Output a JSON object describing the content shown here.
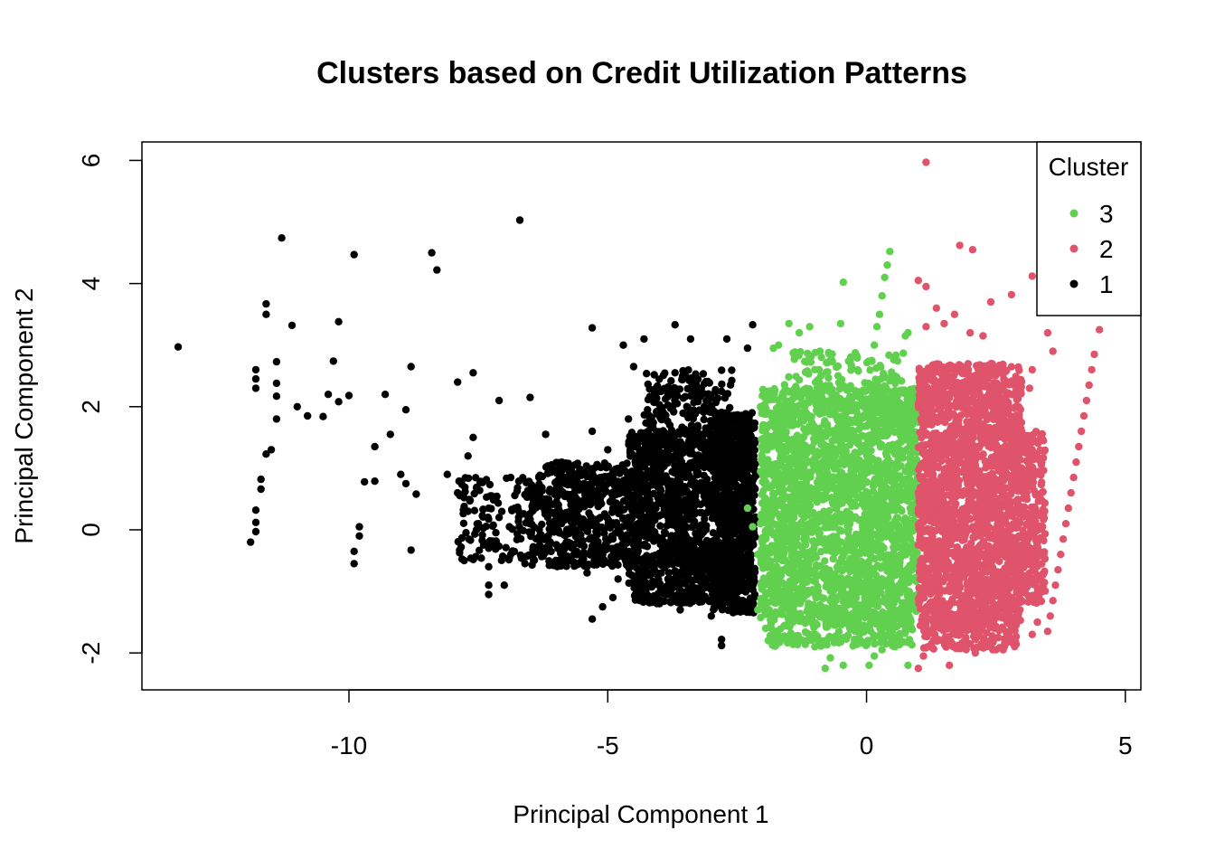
{
  "chart_data": {
    "type": "scatter",
    "title": "Clusters based on Credit Utilization Patterns",
    "xlabel": "Principal Component 1",
    "ylabel": "Principal Component 2",
    "xlim": [
      -14,
      5.3
    ],
    "ylim": [
      -2.6,
      6.3
    ],
    "x_ticks": [
      "-10",
      "-5",
      "0",
      "5"
    ],
    "x_tick_values": [
      -10,
      -5,
      0,
      5
    ],
    "y_ticks": [
      "-2",
      "0",
      "2",
      "4",
      "6"
    ],
    "y_tick_values": [
      -2,
      0,
      2,
      4,
      6
    ],
    "grid": false,
    "legend": {
      "title": "Cluster",
      "placement": "top-right",
      "entries": [
        {
          "label": "3",
          "color": "#61D04F"
        },
        {
          "label": "2",
          "color": "#DF536B"
        },
        {
          "label": "1",
          "color": "#000000"
        }
      ]
    },
    "series": [
      {
        "name": "1",
        "color": "#000000",
        "points": [
          [
            -13.3,
            2.97
          ],
          [
            -11.3,
            4.74
          ],
          [
            -9.9,
            4.47
          ],
          [
            -8.4,
            4.5
          ],
          [
            -8.3,
            4.22
          ],
          [
            -6.7,
            5.03
          ],
          [
            -11.6,
            3.67
          ],
          [
            -11.6,
            3.5
          ],
          [
            -11.1,
            3.32
          ],
          [
            -10.2,
            3.38
          ],
          [
            -10.3,
            2.74
          ],
          [
            -11.8,
            2.6
          ],
          [
            -11.8,
            2.45
          ],
          [
            -11.8,
            2.3
          ],
          [
            -11.4,
            2.73
          ],
          [
            -11.4,
            2.38
          ],
          [
            -11.4,
            2.17
          ],
          [
            -11.0,
            2.0
          ],
          [
            -10.8,
            1.85
          ],
          [
            -10.5,
            1.84
          ],
          [
            -10.4,
            2.2
          ],
          [
            -10.2,
            2.08
          ],
          [
            -10.0,
            2.18
          ],
          [
            -9.3,
            2.2
          ],
          [
            -8.8,
            2.65
          ],
          [
            -8.9,
            1.95
          ],
          [
            -11.4,
            1.8
          ],
          [
            -11.5,
            1.3
          ],
          [
            -11.6,
            1.23
          ],
          [
            -11.7,
            0.82
          ],
          [
            -11.7,
            0.66
          ],
          [
            -11.8,
            0.32
          ],
          [
            -11.8,
            0.12
          ],
          [
            -11.8,
            -0.03
          ],
          [
            -11.9,
            -0.2
          ],
          [
            -9.2,
            1.55
          ],
          [
            -9.5,
            1.35
          ],
          [
            -9.7,
            0.78
          ],
          [
            -9.5,
            0.79
          ],
          [
            -9.0,
            0.9
          ],
          [
            -8.9,
            0.75
          ],
          [
            -8.7,
            0.58
          ],
          [
            -9.8,
            0.05
          ],
          [
            -9.8,
            -0.1
          ],
          [
            -9.9,
            -0.35
          ],
          [
            -9.9,
            -0.55
          ],
          [
            -8.8,
            -0.33
          ],
          [
            -8.1,
            0.9
          ],
          [
            -7.9,
            0.6
          ],
          [
            -7.7,
            0.3
          ],
          [
            -7.5,
            0.1
          ],
          [
            -7.3,
            0.35
          ],
          [
            -7.1,
            0.2
          ],
          [
            -6.9,
            0.05
          ],
          [
            -7.6,
            1.5
          ],
          [
            -7.7,
            1.2
          ],
          [
            -7.9,
            2.4
          ],
          [
            -7.6,
            2.55
          ],
          [
            -7.1,
            2.1
          ],
          [
            -6.5,
            2.15
          ],
          [
            -6.2,
            1.55
          ],
          [
            -7.3,
            -0.3
          ],
          [
            -7.3,
            -0.6
          ],
          [
            -7.3,
            -0.9
          ],
          [
            -7.3,
            -1.05
          ],
          [
            -7.0,
            -0.9
          ],
          [
            -6.9,
            -0.45
          ],
          [
            -6.6,
            -0.55
          ],
          [
            -6.3,
            -0.3
          ],
          [
            -5.8,
            -0.2
          ],
          [
            -5.6,
            0.3
          ],
          [
            -5.3,
            3.28
          ],
          [
            -4.7,
            3.0
          ],
          [
            -4.3,
            3.1
          ],
          [
            -3.7,
            3.33
          ],
          [
            -3.4,
            3.1
          ],
          [
            -2.7,
            3.1
          ],
          [
            -2.2,
            3.33
          ],
          [
            -2.3,
            2.95
          ],
          [
            -4.5,
            2.65
          ],
          [
            -3.7,
            2.55
          ],
          [
            -3.1,
            2.4
          ],
          [
            -2.8,
            2.25
          ],
          [
            -4.1,
            2.2
          ],
          [
            -5.3,
            1.6
          ],
          [
            -5.0,
            1.3
          ],
          [
            -4.6,
            1.8
          ],
          [
            -4.2,
            1.5
          ],
          [
            -3.8,
            1.7
          ],
          [
            -3.4,
            1.4
          ],
          [
            -2.9,
            1.5
          ],
          [
            -2.6,
            1.25
          ],
          [
            -2.3,
            1.4
          ],
          [
            -2.1,
            0.9
          ],
          [
            -4.8,
            -0.8
          ],
          [
            -5.1,
            -1.25
          ],
          [
            -4.9,
            -1.1
          ],
          [
            -5.4,
            -0.7
          ],
          [
            -4.0,
            -1.2
          ],
          [
            -3.6,
            -1.3
          ],
          [
            -3.0,
            -1.4
          ],
          [
            -2.3,
            -1.3
          ],
          [
            -2.8,
            -1.88
          ],
          [
            -2.8,
            -1.78
          ],
          [
            -5.3,
            -1.45
          ],
          [
            -2.2,
            -0.9
          ],
          [
            -3.2,
            -0.95
          ],
          [
            -3.8,
            -0.8
          ],
          [
            -4.3,
            -0.55
          ],
          [
            -4.5,
            -0.4
          ],
          [
            -4.6,
            0.2
          ]
        ],
        "clouds": [
          {
            "x": [
              -6.5,
              -4.6
            ],
            "y": [
              -0.6,
              1.1
            ],
            "n": 520
          },
          {
            "x": [
              -4.6,
              -3.0
            ],
            "y": [
              -1.2,
              1.6
            ],
            "n": 950
          },
          {
            "x": [
              -3.0,
              -2.15
            ],
            "y": [
              -1.35,
              1.9
            ],
            "n": 900
          },
          {
            "x": [
              -4.3,
              -2.6
            ],
            "y": [
              1.0,
              2.6
            ],
            "n": 260
          },
          {
            "x": [
              -7.9,
              -6.3
            ],
            "y": [
              -0.5,
              0.9
            ],
            "n": 140
          }
        ]
      },
      {
        "name": "3",
        "color": "#61D04F",
        "points": [
          [
            0.45,
            4.52
          ],
          [
            0.4,
            4.3
          ],
          [
            0.35,
            4.1
          ],
          [
            0.3,
            3.8
          ],
          [
            0.25,
            3.5
          ],
          [
            0.2,
            3.3
          ],
          [
            0.15,
            3.0
          ],
          [
            0.1,
            2.75
          ],
          [
            -0.45,
            4.02
          ],
          [
            -0.5,
            3.35
          ],
          [
            -1.5,
            3.35
          ],
          [
            -1.3,
            3.2
          ],
          [
            -1.1,
            3.3
          ],
          [
            -1.7,
            3.0
          ],
          [
            -1.8,
            2.95
          ],
          [
            -0.9,
            2.9
          ],
          [
            0.75,
            3.15
          ],
          [
            0.8,
            3.2
          ],
          [
            -0.8,
            -2.25
          ],
          [
            -0.7,
            -2.08
          ],
          [
            -0.45,
            -2.2
          ],
          [
            0.05,
            -2.2
          ],
          [
            0.15,
            -2.05
          ],
          [
            0.3,
            -1.95
          ],
          [
            0.55,
            -1.9
          ],
          [
            0.8,
            -2.2
          ],
          [
            -1.0,
            -1.9
          ],
          [
            -1.45,
            -1.75
          ],
          [
            -1.9,
            -1.8
          ],
          [
            -1.95,
            -1.6
          ],
          [
            -2.1,
            -1.3
          ],
          [
            -2.3,
            0.35
          ],
          [
            -2.2,
            0.05
          ],
          [
            -2.1,
            -0.4
          ],
          [
            -2.0,
            1.7
          ],
          [
            -1.9,
            2.25
          ],
          [
            -2.05,
            2.0
          ]
        ],
        "clouds": [
          {
            "x": [
              -2.05,
              1.0
            ],
            "y": [
              -1.45,
              2.3
            ],
            "n": 2300
          },
          {
            "x": [
              -1.6,
              0.8
            ],
            "y": [
              2.0,
              2.9
            ],
            "n": 140
          },
          {
            "x": [
              -1.9,
              0.9
            ],
            "y": [
              -1.9,
              -1.3
            ],
            "n": 260
          }
        ]
      },
      {
        "name": "2",
        "color": "#DF536B",
        "points": [
          [
            1.15,
            5.97
          ],
          [
            1.8,
            4.62
          ],
          [
            2.05,
            4.55
          ],
          [
            3.2,
            4.12
          ],
          [
            2.8,
            3.82
          ],
          [
            2.4,
            3.7
          ],
          [
            1.0,
            4.05
          ],
          [
            1.15,
            3.95
          ],
          [
            1.35,
            3.6
          ],
          [
            1.7,
            3.5
          ],
          [
            1.5,
            3.35
          ],
          [
            1.15,
            3.3
          ],
          [
            2.0,
            3.2
          ],
          [
            2.25,
            3.15
          ],
          [
            3.5,
            3.2
          ],
          [
            3.6,
            2.9
          ],
          [
            4.5,
            3.25
          ],
          [
            4.4,
            2.85
          ],
          [
            4.35,
            2.6
          ],
          [
            4.3,
            2.35
          ],
          [
            4.25,
            2.1
          ],
          [
            4.2,
            1.85
          ],
          [
            4.15,
            1.6
          ],
          [
            4.1,
            1.35
          ],
          [
            4.05,
            1.1
          ],
          [
            4.0,
            0.85
          ],
          [
            3.95,
            0.6
          ],
          [
            3.9,
            0.35
          ],
          [
            3.85,
            0.1
          ],
          [
            3.8,
            -0.15
          ],
          [
            3.75,
            -0.4
          ],
          [
            3.7,
            -0.65
          ],
          [
            3.65,
            -0.9
          ],
          [
            3.6,
            -1.15
          ],
          [
            3.55,
            -1.4
          ],
          [
            3.5,
            -1.65
          ],
          [
            3.2,
            2.6
          ],
          [
            3.15,
            2.3
          ],
          [
            2.95,
            1.8
          ],
          [
            1.0,
            -2.25
          ],
          [
            1.1,
            -2.05
          ],
          [
            1.6,
            -2.2
          ],
          [
            2.1,
            -2.0
          ],
          [
            2.5,
            -1.95
          ],
          [
            3.2,
            -1.7
          ],
          [
            3.3,
            -1.5
          ],
          [
            3.2,
            1.3
          ],
          [
            3.35,
            0.9
          ]
        ],
        "clouds": [
          {
            "x": [
              1.0,
              3.0
            ],
            "y": [
              -1.6,
              2.7
            ],
            "n": 2100
          },
          {
            "x": [
              3.0,
              3.45
            ],
            "y": [
              -1.2,
              1.6
            ],
            "n": 250
          },
          {
            "x": [
              1.1,
              2.9
            ],
            "y": [
              -1.95,
              -1.5
            ],
            "n": 140
          }
        ]
      }
    ]
  }
}
